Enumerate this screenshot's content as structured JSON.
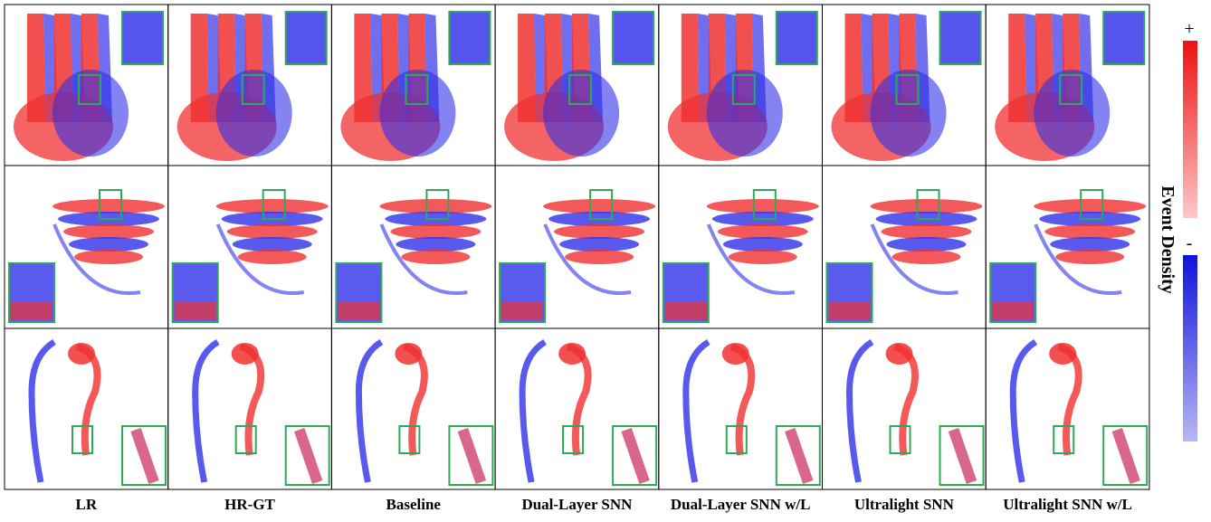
{
  "columns": [
    "LR",
    "HR-GT",
    "Baseline",
    "Dual-Layer SNN",
    "Dual-Layer SNN w/L",
    "Ultralight SNN",
    "Ultralight SNN w/L"
  ],
  "colorbar": {
    "title": "Event Density",
    "max_label": "+",
    "min_label": "-"
  }
}
